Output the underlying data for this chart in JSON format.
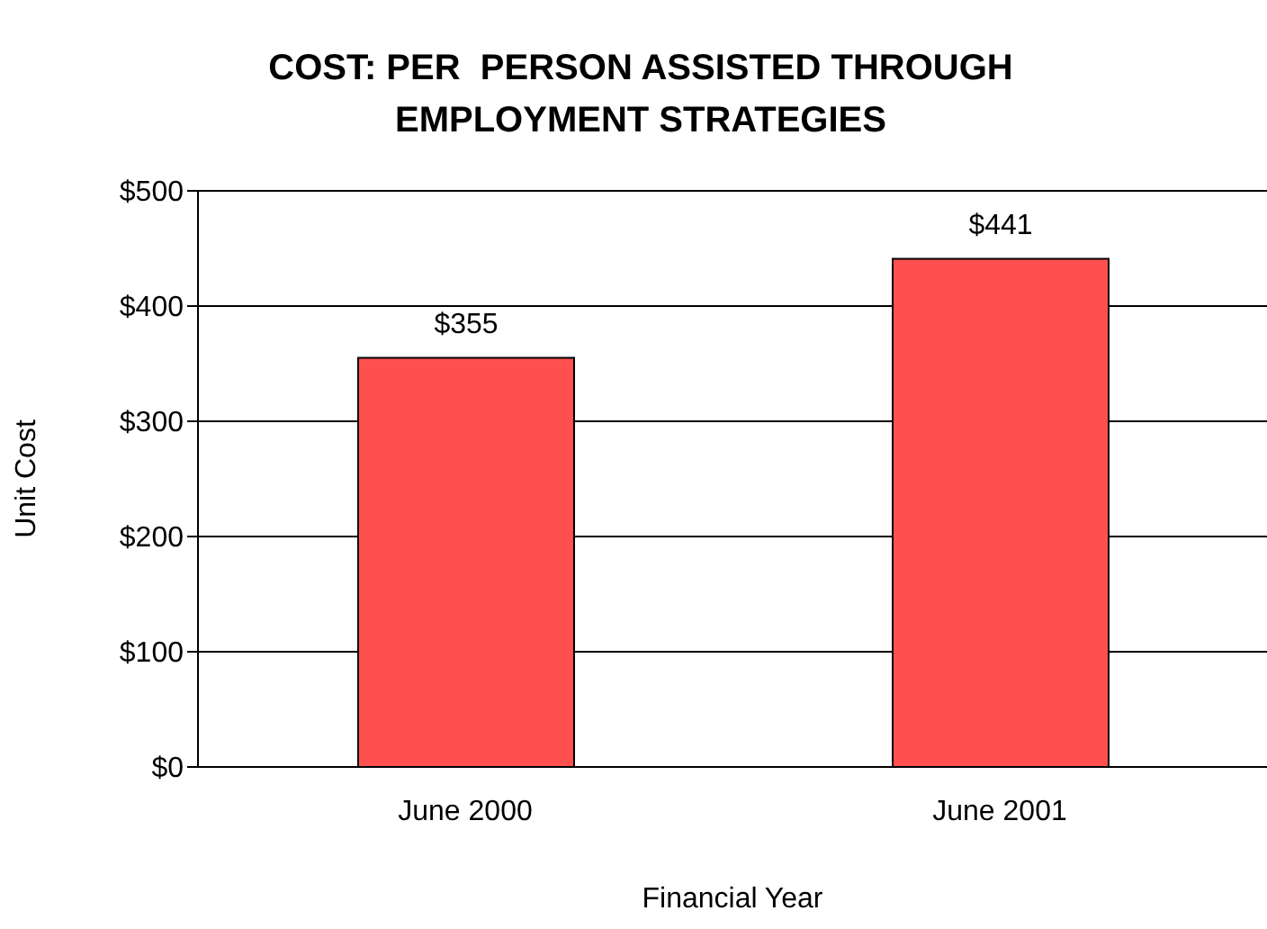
{
  "chart_data": {
    "type": "bar",
    "title": "COST: PER  PERSON ASSISTED THROUGH EMPLOYMENT STRATEGIES",
    "xlabel": "Financial Year",
    "ylabel": "Unit Cost",
    "categories": [
      "June 2000",
      "June 2001"
    ],
    "values": [
      355,
      441
    ],
    "value_labels": [
      "$355",
      "$441"
    ],
    "color": "#ff5050",
    "ylim": [
      0,
      500
    ],
    "yticks": [
      {
        "value": 0,
        "label": "$0"
      },
      {
        "value": 100,
        "label": "$100"
      },
      {
        "value": 200,
        "label": "$200"
      },
      {
        "value": 300,
        "label": "$300"
      },
      {
        "value": 400,
        "label": "$400"
      },
      {
        "value": 500,
        "label": "$500"
      }
    ],
    "grid": "y"
  }
}
